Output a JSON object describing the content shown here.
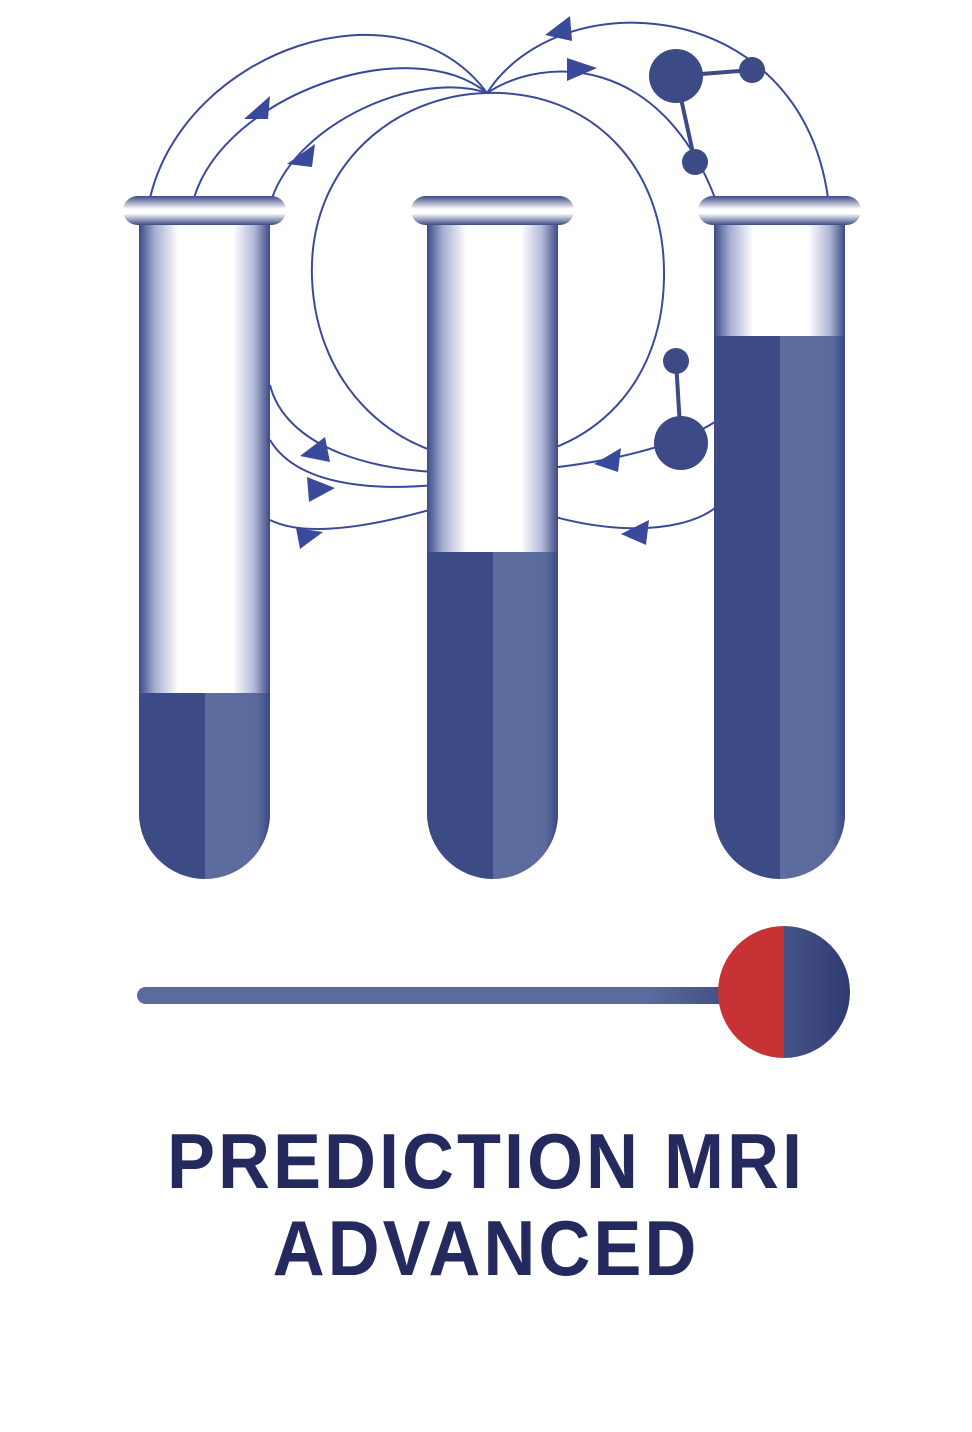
{
  "logo": {
    "caption_line_1": "PREDICTION MRI",
    "caption_line_2": "ADVANCED",
    "icon_names": [
      "test-tube-icon",
      "magnetic-field-line-icon",
      "molecule-icon",
      "slider-handle-icon"
    ],
    "tubes": [
      {
        "fill_level": 0.29
      },
      {
        "fill_level": 0.52
      },
      {
        "fill_level": 0.83
      }
    ],
    "slider_value": 1.0,
    "colors": {
      "navy": "#252a5e",
      "tube_blue_dark": "#3c4a85",
      "tube_blue_light": "#5d6d9e",
      "line_blue": "#3a4a9a",
      "knob_red": "#c73335",
      "track_blue": "#5b6ba0",
      "background": "#ffffff"
    }
  }
}
